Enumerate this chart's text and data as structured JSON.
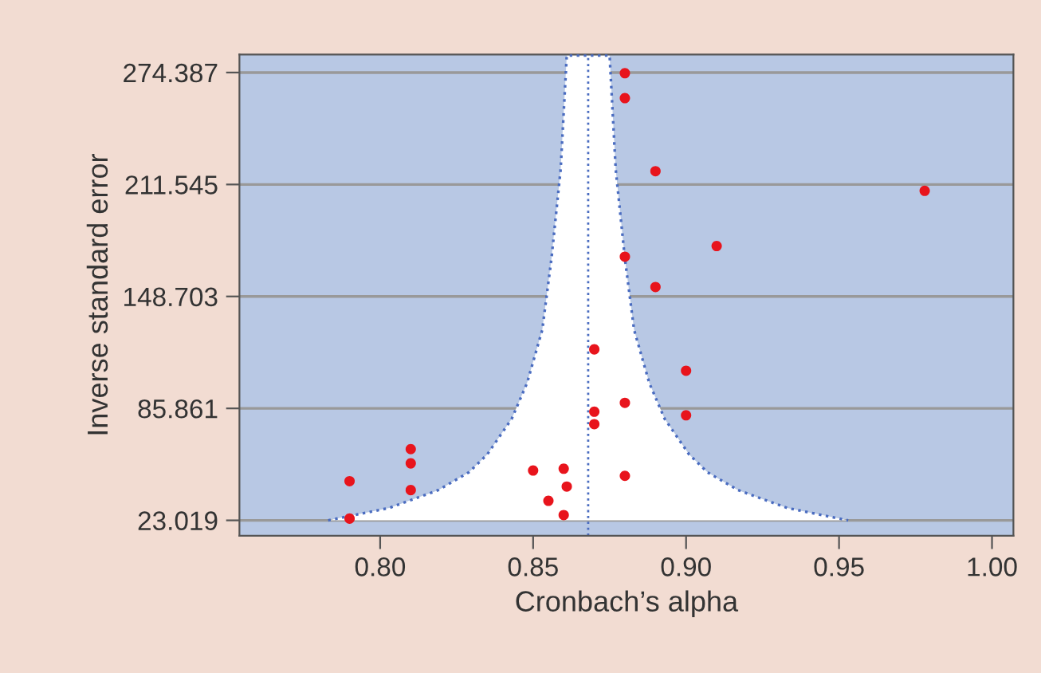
{
  "chart_data": {
    "type": "scatter",
    "xlabel": "Cronbach’s alpha",
    "ylabel": "Inverse standard error",
    "xlim": [
      0.754,
      1.007
    ],
    "ylim": [
      14.4,
      284.5
    ],
    "xticks": [
      {
        "value": 0.8,
        "label": "0.80"
      },
      {
        "value": 0.85,
        "label": "0.85"
      },
      {
        "value": 0.9,
        "label": "0.90"
      },
      {
        "value": 0.95,
        "label": "0.95"
      },
      {
        "value": 1.0,
        "label": "1.00"
      }
    ],
    "yticks": [
      23.019,
      85.861,
      148.703,
      211.545,
      274.387
    ],
    "grid": "y",
    "legend": false,
    "marker": "circle",
    "ref_lines": [
      {
        "axis": "x",
        "value": 0.868,
        "color": "#4a6cc0",
        "line_style": "dotted"
      }
    ],
    "series": [
      {
        "type": "area",
        "color": "#ffffff",
        "line_style": "dotted",
        "marker": "none",
        "x": [
          0.783,
          0.803,
          0.819,
          0.829,
          0.835,
          0.843,
          0.848,
          0.853,
          0.856,
          0.859,
          0.861,
          0.875,
          0.877,
          0.88,
          0.883,
          0.888,
          0.893,
          0.901,
          0.907,
          0.917,
          0.933,
          0.953
        ],
        "values": [
          23,
          30,
          40,
          50,
          60,
          80,
          100,
          130,
          170,
          220,
          284,
          284,
          220,
          170,
          130,
          100,
          80,
          60,
          50,
          40,
          30,
          23
        ]
      },
      {
        "color": "#e8141c",
        "x": [
          0.88,
          0.88,
          0.89,
          0.978,
          0.91,
          0.88,
          0.89,
          0.87,
          0.9,
          0.88,
          0.87,
          0.9,
          0.87,
          0.81,
          0.81,
          0.81,
          0.79,
          0.79,
          0.85,
          0.86,
          0.861,
          0.855,
          0.86,
          0.88
        ],
        "values": [
          274,
          260,
          219,
          208,
          177,
          171,
          154,
          119,
          107,
          89,
          84,
          82,
          77,
          63,
          55,
          40,
          45,
          24,
          51,
          52,
          42,
          34,
          26,
          48
        ]
      }
    ]
  }
}
